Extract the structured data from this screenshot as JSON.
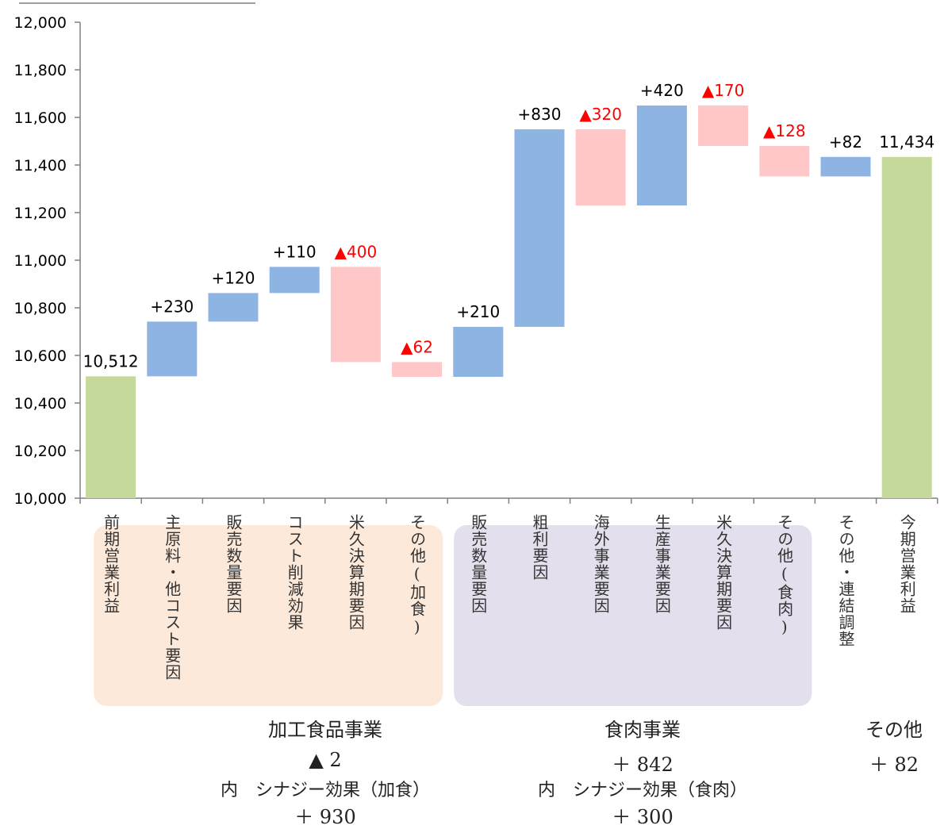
{
  "chart_data": {
    "type": "bar",
    "subtype": "waterfall",
    "ylim": [
      10000,
      12000
    ],
    "yticks": [
      10000,
      10200,
      10400,
      10600,
      10800,
      11000,
      11200,
      11400,
      11600,
      11800,
      12000
    ],
    "ytick_labels": [
      "10,000",
      "10,200",
      "10,400",
      "10,600",
      "10,800",
      "11,000",
      "11,200",
      "11,400",
      "11,600",
      "11,800",
      "12,000"
    ],
    "grid": false,
    "bars": [
      {
        "category": "前期営業利益",
        "kind": "total",
        "start": 10000,
        "end": 10512,
        "label": "10,512"
      },
      {
        "category": "主原料・他コスト要因",
        "kind": "increase",
        "start": 10512,
        "end": 10742,
        "label": "+230"
      },
      {
        "category": "販売数量要因",
        "kind": "increase",
        "start": 10742,
        "end": 10862,
        "label": "+120"
      },
      {
        "category": "コスト削減効果",
        "kind": "increase",
        "start": 10862,
        "end": 10972,
        "label": "+110"
      },
      {
        "category": "米久決算期要因",
        "kind": "decrease",
        "start": 10972,
        "end": 10572,
        "label": "▲400"
      },
      {
        "category": "その他(加食)",
        "kind": "decrease",
        "start": 10572,
        "end": 10510,
        "label": "▲62"
      },
      {
        "category": "販売数量要因",
        "kind": "increase",
        "start": 10510,
        "end": 10720,
        "label": "+210"
      },
      {
        "category": "粗利要因",
        "kind": "increase",
        "start": 10720,
        "end": 11550,
        "label": "+830"
      },
      {
        "category": "海外事業要因",
        "kind": "decrease",
        "start": 11550,
        "end": 11230,
        "label": "▲320"
      },
      {
        "category": "生産事業要因",
        "kind": "increase",
        "start": 11230,
        "end": 11650,
        "label": "+420"
      },
      {
        "category": "米久決算期要因",
        "kind": "decrease",
        "start": 11650,
        "end": 11480,
        "label": "▲170"
      },
      {
        "category": "その他(食肉)",
        "kind": "decrease",
        "start": 11480,
        "end": 11352,
        "label": "▲128"
      },
      {
        "category": "その他・連結調整",
        "kind": "increase",
        "start": 11352,
        "end": 11434,
        "label": "+82"
      },
      {
        "category": "今期営業利益",
        "kind": "total",
        "start": 10000,
        "end": 11434,
        "label": "11,434"
      }
    ],
    "groups": [
      {
        "name": "加工食品事業",
        "total": "▲ 2",
        "note": "内　シナジー効果（加食）",
        "note_value": "＋ 930",
        "from": 1,
        "to": 5
      },
      {
        "name": "食肉事業",
        "total": "＋ 842",
        "note": "内　シナジー効果（食肉）",
        "note_value": "＋ 300",
        "from": 6,
        "to": 11
      },
      {
        "name": "その他",
        "total": "＋ 82",
        "note": "",
        "note_value": "",
        "from": 12,
        "to": 12
      }
    ],
    "colors": {
      "total": "#c5d99b",
      "increase": "#8eb4e3",
      "decrease": "#ffc7c7",
      "decrease_label": "#ff0000",
      "label": "#000000",
      "category_text": "#333333",
      "group_processed_bg": "#fde9d9",
      "group_meat_bg": "#e4dfec",
      "axis": "#808080"
    }
  }
}
